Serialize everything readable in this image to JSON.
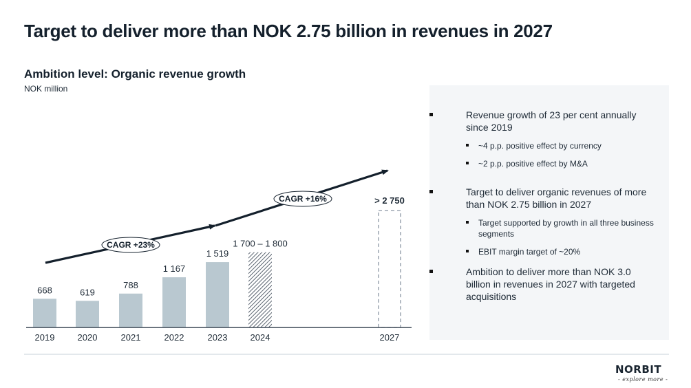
{
  "header": {
    "title": "Target to deliver more than NOK 2.75 billion in revenues in 2027",
    "subtitle": "Ambition level: Organic revenue growth",
    "unit": "NOK million"
  },
  "chart_data": {
    "type": "bar",
    "title": "Ambition level: Organic revenue growth",
    "ylabel": "NOK million",
    "xlabel": "",
    "categories": [
      "2019",
      "2020",
      "2021",
      "2022",
      "2023",
      "2024",
      "2027"
    ],
    "values": [
      668,
      619,
      788,
      1167,
      1519,
      1750,
      2750
    ],
    "value_labels": [
      "668",
      "619",
      "788",
      "1 167",
      "1 519",
      "1 700 – 1 800",
      "> 2 750"
    ],
    "bar_styles": [
      "actual",
      "actual",
      "actual",
      "actual",
      "actual",
      "forecast-hatched",
      "target-dashed"
    ],
    "ylim": [
      0,
      3300
    ],
    "grid": false,
    "legend": "none",
    "annotations": [
      {
        "text": "CAGR +23%",
        "from": "2019",
        "to": "2023"
      },
      {
        "text": "CAGR +16%",
        "from": "2023",
        "to": "2027"
      }
    ],
    "colors": {
      "actual": "#b9c8d0",
      "hatch": "#5a6470",
      "target_dash": "#8a96a3",
      "arrow": "#14202c",
      "axis": "#3a4654"
    }
  },
  "panel": {
    "bullets": [
      {
        "text": "Revenue growth of 23 per cent annually since 2019",
        "sub": [
          "~4 p.p. positive effect by currency",
          "~2 p.p. positive effect by M&A"
        ]
      },
      {
        "text": "Target to deliver organic revenues of more than NOK 2.75 billion in 2027",
        "sub": [
          "Target supported by growth in all three business segments",
          "EBIT margin target of ~20%"
        ]
      },
      {
        "text": "Ambition to deliver more than NOK 3.0 billion in revenues in 2027 with targeted acquisitions",
        "sub": []
      }
    ]
  },
  "footer": {
    "logo": "NORBIT",
    "tagline": "- explore more -"
  }
}
